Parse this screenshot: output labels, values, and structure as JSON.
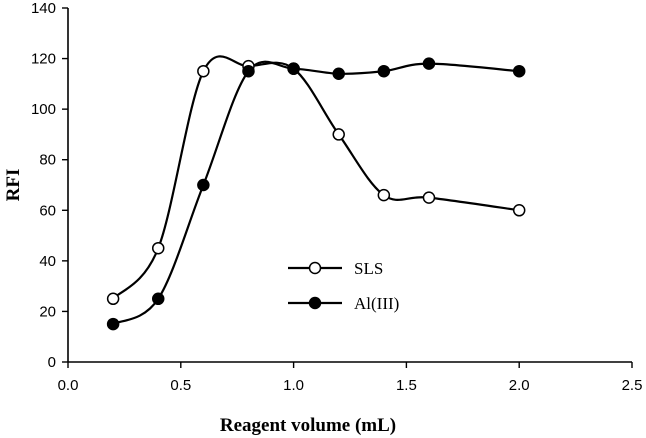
{
  "chart_data": {
    "type": "line",
    "title": "",
    "xlabel": "Reagent volume (mL)",
    "ylabel": "RFI",
    "xlim": [
      0,
      2.5
    ],
    "ylim": [
      0,
      140
    ],
    "xticks": [
      "0.0",
      "0.5",
      "1.0",
      "1.5",
      "2.0",
      "2.5"
    ],
    "yticks": [
      "0",
      "20",
      "40",
      "60",
      "80",
      "100",
      "120",
      "140"
    ],
    "grid": false,
    "legend_position": "lower-center",
    "series": [
      {
        "name": "SLS",
        "marker": "open-circle",
        "color": "#000000",
        "x": [
          0.2,
          0.4,
          0.6,
          0.8,
          1.0,
          1.2,
          1.4,
          1.6,
          2.0
        ],
        "y": [
          25,
          45,
          115,
          117,
          116,
          90,
          66,
          65,
          60
        ]
      },
      {
        "name": "Al(III)",
        "marker": "filled-circle",
        "color": "#000000",
        "x": [
          0.2,
          0.4,
          0.6,
          0.8,
          1.0,
          1.2,
          1.4,
          1.6,
          2.0
        ],
        "y": [
          15,
          25,
          70,
          115,
          116,
          114,
          115,
          118,
          115
        ]
      }
    ]
  }
}
